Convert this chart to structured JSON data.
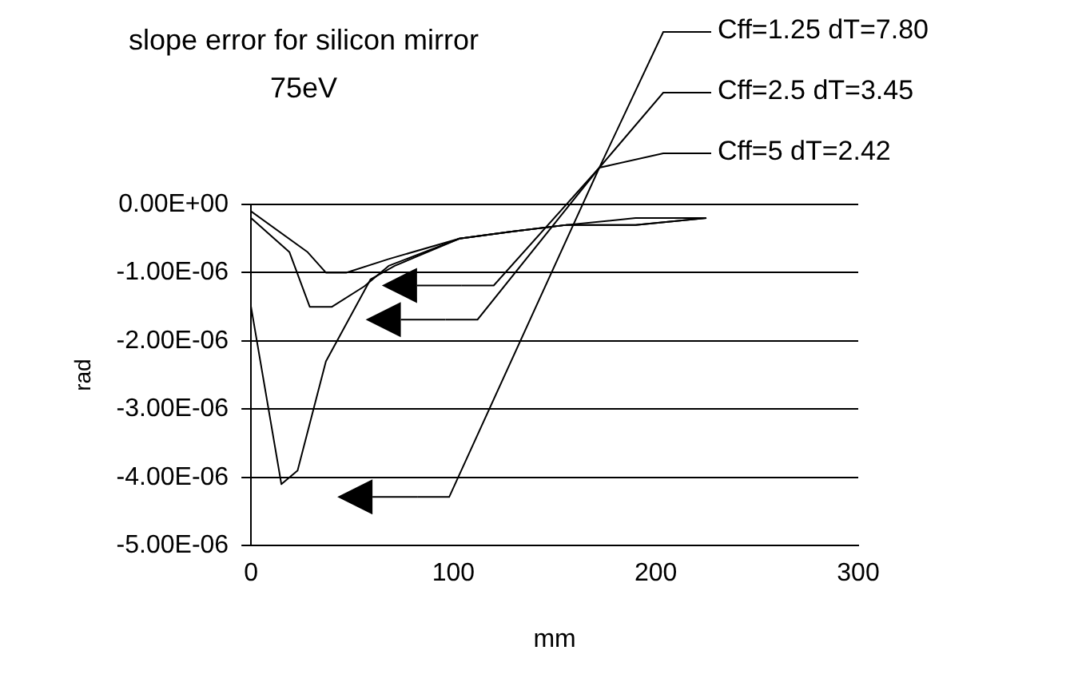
{
  "chart_data": {
    "type": "line",
    "title": "slope error for silicon mirror",
    "subtitle": "75eV",
    "xlabel": "mm",
    "ylabel": "rad",
    "xlim": [
      0,
      300
    ],
    "xticks": [
      0,
      100,
      200,
      300
    ],
    "ylim": [
      -5e-06,
      0
    ],
    "yticks": [
      {
        "value": -5e-06,
        "label": "-5.00E-06"
      },
      {
        "value": -4e-06,
        "label": "-4.00E-06"
      },
      {
        "value": -3e-06,
        "label": "-3.00E-06"
      },
      {
        "value": -2e-06,
        "label": "-2.00E-06"
      },
      {
        "value": -1e-06,
        "label": "-1.00E-06"
      },
      {
        "value": 0,
        "label": "0.00E+00"
      }
    ],
    "grid": "y",
    "marker": "none",
    "line_style": "solid",
    "series": [
      {
        "name": "Cff=1.25 dT=7.80",
        "color": "#000000",
        "x": [
          0,
          15,
          23,
          37,
          48,
          59,
          71,
          103,
          128,
          156,
          190,
          225
        ],
        "values": [
          -1.5e-06,
          -4.1e-06,
          -3.9e-06,
          -2.3e-06,
          -1.7e-06,
          -1.1e-06,
          -9e-07,
          -5e-07,
          -4e-07,
          -3e-07,
          -3e-07,
          -2e-07
        ]
      },
      {
        "name": "Cff=2.5 dT=3.45",
        "color": "#000000",
        "x": [
          0,
          19,
          29,
          40,
          56,
          68,
          103,
          128,
          156,
          190,
          225
        ],
        "values": [
          -2e-07,
          -7e-07,
          -1.5e-06,
          -1.5e-06,
          -1.2e-06,
          -9e-07,
          -5e-07,
          -4e-07,
          -3e-07,
          -3e-07,
          -2e-07
        ]
      },
      {
        "name": "Cff=5 dT=2.42",
        "color": "#000000",
        "x": [
          0,
          28,
          37,
          47,
          68,
          103,
          128,
          156,
          190,
          225
        ],
        "values": [
          -1e-07,
          -7e-07,
          -1e-06,
          -1e-06,
          -8e-07,
          -5e-07,
          -4e-07,
          -3e-07,
          -2e-07,
          -2e-07
        ]
      }
    ]
  }
}
